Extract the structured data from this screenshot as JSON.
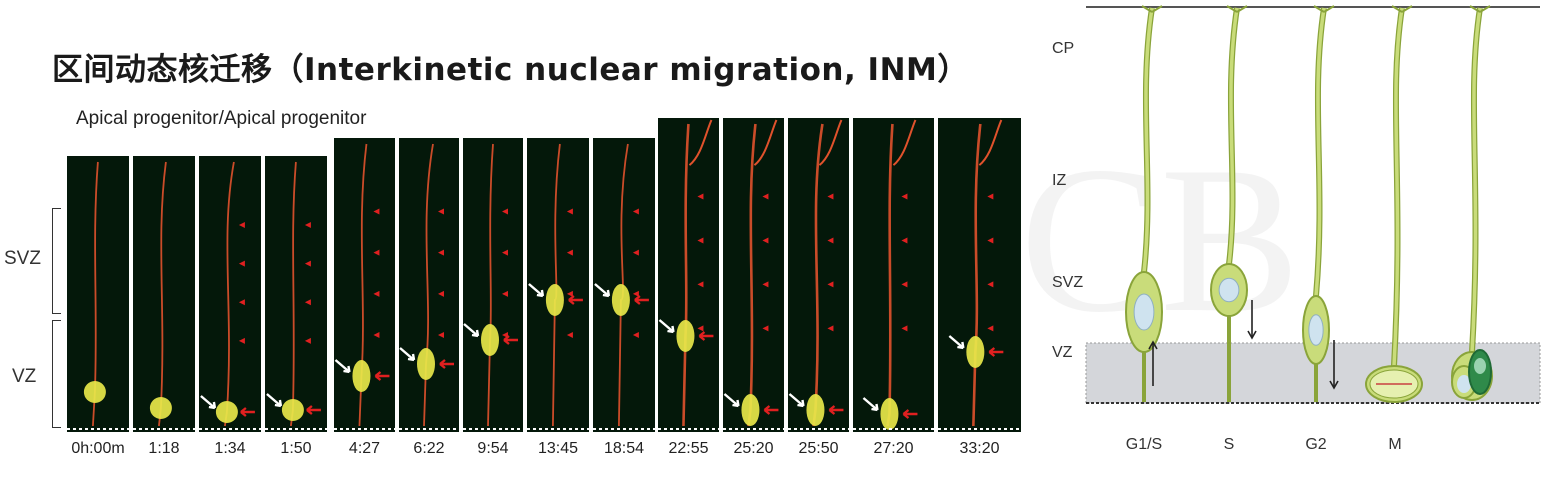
{
  "slide": {
    "title": "区间动态核迁移（Interkinetic nuclear migration, INM）",
    "subtitle": "Apical progenitor/Apical progenitor"
  },
  "timelapse": {
    "regions": [
      "SVZ",
      "VZ"
    ],
    "frames": [
      {
        "time": "0h:00m"
      },
      {
        "time": "1:18"
      },
      {
        "time": "1:34"
      },
      {
        "time": "1:50"
      },
      {
        "time": "4:27"
      },
      {
        "time": "6:22"
      },
      {
        "time": "9:54"
      },
      {
        "time": "13:45"
      },
      {
        "time": "18:54"
      },
      {
        "time": "22:55"
      },
      {
        "time": "25:20"
      },
      {
        "time": "25:50"
      },
      {
        "time": "27:20"
      },
      {
        "time": "33:20"
      }
    ],
    "colors": {
      "background": "#04180a",
      "cell_red": "#e0522c",
      "cell_yellow": "#e8e84a",
      "arrow_red": "#e02020",
      "arrow_white": "#ffffff"
    }
  },
  "diagram": {
    "zones": [
      "CP",
      "IZ",
      "SVZ",
      "VZ"
    ],
    "phases": [
      "G1/S",
      "S",
      "G2",
      "M"
    ],
    "colors": {
      "cell_fill": "#c9dc7a",
      "cell_stroke": "#8aa43a",
      "nucleus": "#cfe3ef",
      "vz_band": "#d4d6da",
      "dark_green": "#2f8a4a"
    }
  }
}
